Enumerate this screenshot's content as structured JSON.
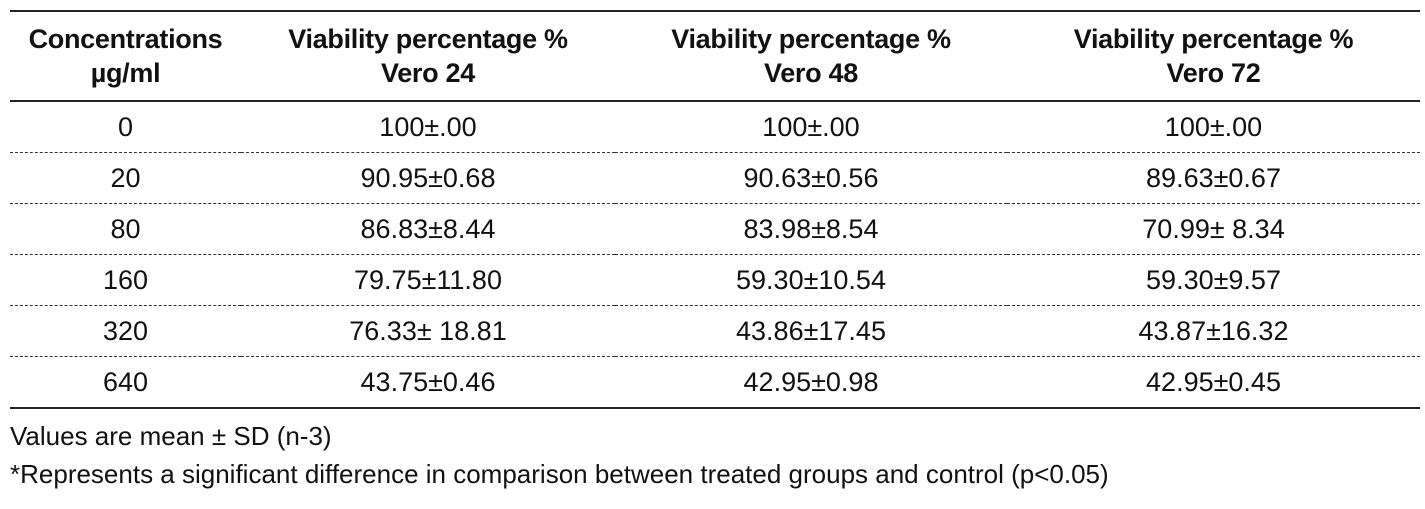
{
  "table": {
    "headers": [
      [
        "Concentrations",
        "µg/ml"
      ],
      [
        "Viability percentage %",
        "Vero 24"
      ],
      [
        "Viability percentage %",
        "Vero 48"
      ],
      [
        "Viability percentage %",
        "Vero 72"
      ]
    ],
    "rows": [
      [
        "0",
        "100±.00",
        "100±.00",
        "100±.00"
      ],
      [
        "20",
        "90.95±0.68",
        "90.63±0.56",
        "89.63±0.67"
      ],
      [
        "80",
        "86.83±8.44",
        "83.98±8.54",
        "70.99± 8.34"
      ],
      [
        "160",
        "79.75±11.80",
        "59.30±10.54",
        "59.30±9.57"
      ],
      [
        "320",
        "76.33± 18.81",
        "43.86±17.45",
        "43.87±16.32"
      ],
      [
        "640",
        "43.75±0.46",
        "42.95±0.98",
        "42.95±0.45"
      ]
    ]
  },
  "notes": [
    "Values are mean ± SD (n-3)",
    "*Represents a significant difference in comparison between treated groups and control (p<0.05)"
  ]
}
